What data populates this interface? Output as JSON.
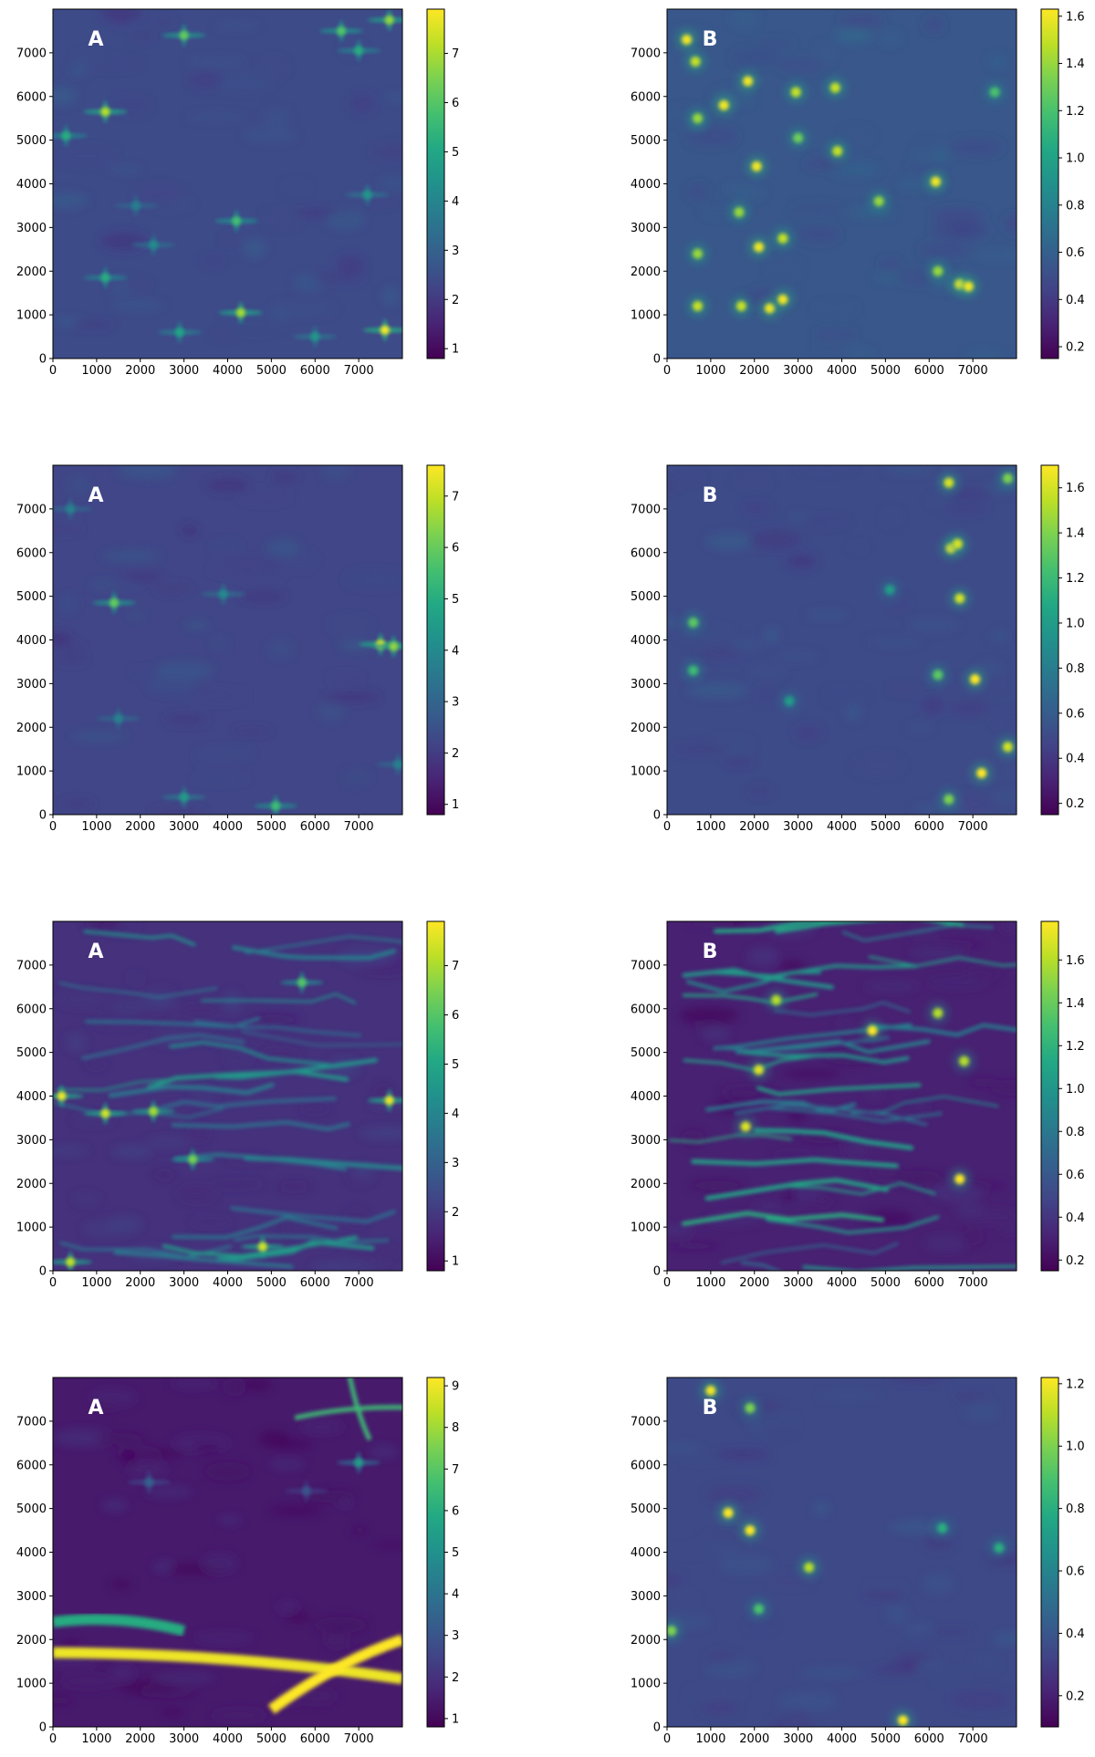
{
  "figure": {
    "panel_labels": [
      "A",
      "B"
    ]
  },
  "chart_data": [
    {
      "type": "heatmap",
      "panel_label": "A",
      "row": 1,
      "column": 1,
      "x_ticks": [
        "0",
        "1000",
        "2000",
        "3000",
        "4000",
        "5000",
        "6000",
        "7000"
      ],
      "y_ticks": [
        "0",
        "1000",
        "2000",
        "3000",
        "4000",
        "5000",
        "6000",
        "7000"
      ],
      "xlim": [
        0,
        8000
      ],
      "ylim": [
        0,
        8000
      ],
      "colorbar_ticks": [
        "1",
        "2",
        "3",
        "4",
        "5",
        "6",
        "7"
      ],
      "value_range": [
        0.8,
        7.9
      ],
      "background_value": 2.4,
      "grid": false,
      "features": [
        {
          "kind": "star",
          "x": 1200,
          "y": 5650,
          "value": 7.2
        },
        {
          "kind": "star",
          "x": 3000,
          "y": 7400,
          "value": 6.2
        },
        {
          "kind": "star",
          "x": 4300,
          "y": 1050,
          "value": 7.0
        },
        {
          "kind": "star",
          "x": 7600,
          "y": 650,
          "value": 7.9
        },
        {
          "kind": "star",
          "x": 4200,
          "y": 3150,
          "value": 5.8
        },
        {
          "kind": "star",
          "x": 1200,
          "y": 1850,
          "value": 5.2
        },
        {
          "kind": "star",
          "x": 6600,
          "y": 7500,
          "value": 6.0
        },
        {
          "kind": "star",
          "x": 7000,
          "y": 7050,
          "value": 5.2
        },
        {
          "kind": "star",
          "x": 2900,
          "y": 600,
          "value": 5.0
        },
        {
          "kind": "star",
          "x": 7700,
          "y": 7750,
          "value": 6.8
        },
        {
          "kind": "star",
          "x": 300,
          "y": 5100,
          "value": 5.2
        },
        {
          "kind": "star",
          "x": 7200,
          "y": 3750,
          "value": 4.5
        },
        {
          "kind": "star",
          "x": 2300,
          "y": 2600,
          "value": 4.2
        },
        {
          "kind": "star",
          "x": 1900,
          "y": 3500,
          "value": 3.8
        },
        {
          "kind": "star",
          "x": 6000,
          "y": 500,
          "value": 4.5
        }
      ]
    },
    {
      "type": "heatmap",
      "panel_label": "B",
      "row": 1,
      "column": 2,
      "x_ticks": [
        "0",
        "1000",
        "2000",
        "3000",
        "4000",
        "5000",
        "6000",
        "7000"
      ],
      "y_ticks": [
        "0",
        "1000",
        "2000",
        "3000",
        "4000",
        "5000",
        "6000",
        "7000"
      ],
      "xlim": [
        0,
        8000
      ],
      "ylim": [
        0,
        8000
      ],
      "colorbar_ticks": [
        "0.2",
        "0.4",
        "0.6",
        "0.8",
        "1.0",
        "1.2",
        "1.4",
        "1.6"
      ],
      "value_range": [
        0.15,
        1.63
      ],
      "background_value": 0.55,
      "grid": false,
      "features": [
        {
          "kind": "blob",
          "x": 450,
          "y": 7300,
          "value": 1.6
        },
        {
          "kind": "blob",
          "x": 650,
          "y": 6800,
          "value": 1.5
        },
        {
          "kind": "blob",
          "x": 700,
          "y": 5500,
          "value": 1.4
        },
        {
          "kind": "blob",
          "x": 1300,
          "y": 5800,
          "value": 1.6
        },
        {
          "kind": "blob",
          "x": 1850,
          "y": 6350,
          "value": 1.6
        },
        {
          "kind": "blob",
          "x": 2950,
          "y": 6100,
          "value": 1.5
        },
        {
          "kind": "blob",
          "x": 3850,
          "y": 6200,
          "value": 1.5
        },
        {
          "kind": "blob",
          "x": 3900,
          "y": 4750,
          "value": 1.5
        },
        {
          "kind": "blob",
          "x": 2050,
          "y": 4400,
          "value": 1.6
        },
        {
          "kind": "blob",
          "x": 6150,
          "y": 4050,
          "value": 1.6
        },
        {
          "kind": "blob",
          "x": 2100,
          "y": 2550,
          "value": 1.6
        },
        {
          "kind": "blob",
          "x": 2650,
          "y": 2750,
          "value": 1.5
        },
        {
          "kind": "blob",
          "x": 700,
          "y": 2400,
          "value": 1.4
        },
        {
          "kind": "blob",
          "x": 700,
          "y": 1200,
          "value": 1.5
        },
        {
          "kind": "blob",
          "x": 1700,
          "y": 1200,
          "value": 1.5
        },
        {
          "kind": "blob",
          "x": 2350,
          "y": 1150,
          "value": 1.6
        },
        {
          "kind": "blob",
          "x": 2650,
          "y": 1350,
          "value": 1.6
        },
        {
          "kind": "blob",
          "x": 6700,
          "y": 1700,
          "value": 1.6
        },
        {
          "kind": "blob",
          "x": 6900,
          "y": 1650,
          "value": 1.6
        },
        {
          "kind": "blob",
          "x": 6200,
          "y": 2000,
          "value": 1.4
        },
        {
          "kind": "blob",
          "x": 4850,
          "y": 3600,
          "value": 1.4
        },
        {
          "kind": "blob",
          "x": 1650,
          "y": 3350,
          "value": 1.4
        },
        {
          "kind": "blob",
          "x": 3000,
          "y": 5050,
          "value": 1.3
        },
        {
          "kind": "blob",
          "x": 7500,
          "y": 6100,
          "value": 1.2
        }
      ]
    },
    {
      "type": "heatmap",
      "panel_label": "A",
      "row": 2,
      "column": 1,
      "x_ticks": [
        "0",
        "1000",
        "2000",
        "3000",
        "4000",
        "5000",
        "6000",
        "7000"
      ],
      "y_ticks": [
        "0",
        "1000",
        "2000",
        "3000",
        "4000",
        "5000",
        "6000",
        "7000"
      ],
      "xlim": [
        0,
        8000
      ],
      "ylim": [
        0,
        8000
      ],
      "colorbar_ticks": [
        "1",
        "2",
        "3",
        "4",
        "5",
        "6",
        "7"
      ],
      "value_range": [
        0.8,
        7.6
      ],
      "background_value": 2.2,
      "grid": false,
      "features": [
        {
          "kind": "star",
          "x": 7500,
          "y": 3900,
          "value": 7.3
        },
        {
          "kind": "star",
          "x": 7800,
          "y": 3850,
          "value": 6.5
        },
        {
          "kind": "star",
          "x": 1400,
          "y": 4850,
          "value": 6.0
        },
        {
          "kind": "star",
          "x": 5100,
          "y": 200,
          "value": 5.5
        },
        {
          "kind": "star",
          "x": 3000,
          "y": 400,
          "value": 4.5
        },
        {
          "kind": "star",
          "x": 3900,
          "y": 5050,
          "value": 4.0
        },
        {
          "kind": "star",
          "x": 1500,
          "y": 2200,
          "value": 3.8
        },
        {
          "kind": "star",
          "x": 400,
          "y": 7000,
          "value": 3.8
        },
        {
          "kind": "star",
          "x": 7900,
          "y": 1150,
          "value": 3.8
        }
      ]
    },
    {
      "type": "heatmap",
      "panel_label": "B",
      "row": 2,
      "column": 2,
      "x_ticks": [
        "0",
        "1000",
        "2000",
        "3000",
        "4000",
        "5000",
        "6000",
        "7000"
      ],
      "y_ticks": [
        "0",
        "1000",
        "2000",
        "3000",
        "4000",
        "5000",
        "6000",
        "7000"
      ],
      "xlim": [
        0,
        8000
      ],
      "ylim": [
        0,
        8000
      ],
      "colorbar_ticks": [
        "0.2",
        "0.4",
        "0.6",
        "0.8",
        "1.0",
        "1.2",
        "1.4",
        "1.6"
      ],
      "value_range": [
        0.15,
        1.7
      ],
      "background_value": 0.5,
      "grid": false,
      "features": [
        {
          "kind": "blob",
          "x": 6450,
          "y": 7600,
          "value": 1.6
        },
        {
          "kind": "blob",
          "x": 6500,
          "y": 6100,
          "value": 1.7
        },
        {
          "kind": "blob",
          "x": 6650,
          "y": 6200,
          "value": 1.6
        },
        {
          "kind": "blob",
          "x": 6700,
          "y": 4950,
          "value": 1.6
        },
        {
          "kind": "blob",
          "x": 7050,
          "y": 3100,
          "value": 1.7
        },
        {
          "kind": "blob",
          "x": 7200,
          "y": 950,
          "value": 1.7
        },
        {
          "kind": "blob",
          "x": 7800,
          "y": 1550,
          "value": 1.6
        },
        {
          "kind": "blob",
          "x": 7800,
          "y": 7700,
          "value": 1.4
        },
        {
          "kind": "blob",
          "x": 600,
          "y": 4400,
          "value": 1.3
        },
        {
          "kind": "blob",
          "x": 600,
          "y": 3300,
          "value": 1.2
        },
        {
          "kind": "blob",
          "x": 6450,
          "y": 350,
          "value": 1.4
        },
        {
          "kind": "blob",
          "x": 6200,
          "y": 3200,
          "value": 1.3
        },
        {
          "kind": "blob",
          "x": 2800,
          "y": 2600,
          "value": 1.0
        },
        {
          "kind": "blob",
          "x": 5100,
          "y": 5150,
          "value": 1.0
        }
      ]
    },
    {
      "type": "heatmap",
      "panel_label": "A",
      "row": 3,
      "column": 1,
      "x_ticks": [
        "0",
        "1000",
        "2000",
        "3000",
        "4000",
        "5000",
        "6000",
        "7000"
      ],
      "y_ticks": [
        "0",
        "1000",
        "2000",
        "3000",
        "4000",
        "5000",
        "6000",
        "7000"
      ],
      "xlim": [
        0,
        8000
      ],
      "ylim": [
        0,
        8000
      ],
      "colorbar_ticks": [
        "1",
        "2",
        "3",
        "4",
        "5",
        "6",
        "7"
      ],
      "value_range": [
        0.8,
        7.9
      ],
      "background_value": 1.8,
      "grid": false,
      "features": [
        {
          "kind": "filaments",
          "count": 26,
          "value": 4.5
        },
        {
          "kind": "star",
          "x": 200,
          "y": 4000,
          "value": 7.8
        },
        {
          "kind": "star",
          "x": 1200,
          "y": 3600,
          "value": 7.5
        },
        {
          "kind": "star",
          "x": 2300,
          "y": 3650,
          "value": 7.0
        },
        {
          "kind": "star",
          "x": 7700,
          "y": 3900,
          "value": 7.8
        },
        {
          "kind": "star",
          "x": 4800,
          "y": 550,
          "value": 7.5
        },
        {
          "kind": "star",
          "x": 400,
          "y": 200,
          "value": 7.3
        },
        {
          "kind": "star",
          "x": 3200,
          "y": 2550,
          "value": 6.5
        },
        {
          "kind": "star",
          "x": 5700,
          "y": 6600,
          "value": 6.0
        }
      ]
    },
    {
      "type": "heatmap",
      "panel_label": "B",
      "row": 3,
      "column": 2,
      "x_ticks": [
        "0",
        "1000",
        "2000",
        "3000",
        "4000",
        "5000",
        "6000",
        "7000"
      ],
      "y_ticks": [
        "0",
        "1000",
        "2000",
        "3000",
        "4000",
        "5000",
        "6000",
        "7000"
      ],
      "xlim": [
        0,
        8000
      ],
      "ylim": [
        0,
        8000
      ],
      "colorbar_ticks": [
        "0.2",
        "0.4",
        "0.6",
        "0.8",
        "1.0",
        "1.2",
        "1.4",
        "1.6"
      ],
      "value_range": [
        0.15,
        1.78
      ],
      "background_value": 0.3,
      "grid": false,
      "features": [
        {
          "kind": "filaments",
          "count": 30,
          "value": 1.1
        },
        {
          "kind": "blob",
          "x": 4700,
          "y": 5500,
          "value": 1.78
        },
        {
          "kind": "blob",
          "x": 6700,
          "y": 2100,
          "value": 1.78
        },
        {
          "kind": "blob",
          "x": 2100,
          "y": 4600,
          "value": 1.7
        },
        {
          "kind": "blob",
          "x": 1800,
          "y": 3300,
          "value": 1.7
        },
        {
          "kind": "blob",
          "x": 6800,
          "y": 4800,
          "value": 1.6
        },
        {
          "kind": "blob",
          "x": 2500,
          "y": 6200,
          "value": 1.6
        },
        {
          "kind": "blob",
          "x": 6200,
          "y": 5900,
          "value": 1.6
        }
      ]
    },
    {
      "type": "heatmap",
      "panel_label": "A",
      "row": 4,
      "column": 1,
      "x_ticks": [
        "0",
        "1000",
        "2000",
        "3000",
        "4000",
        "5000",
        "6000",
        "7000"
      ],
      "y_ticks": [
        "0",
        "1000",
        "2000",
        "3000",
        "4000",
        "5000",
        "6000",
        "7000"
      ],
      "xlim": [
        0,
        8000
      ],
      "ylim": [
        0,
        8000
      ],
      "colorbar_ticks": [
        "1",
        "2",
        "3",
        "4",
        "5",
        "6",
        "7",
        "8",
        "9"
      ],
      "value_range": [
        0.8,
        9.2
      ],
      "background_value": 1.4,
      "grid": false,
      "features": [
        {
          "kind": "caustic_band",
          "from": [
            0,
            1700
          ],
          "to": [
            8000,
            1100
          ],
          "value": 9.0
        },
        {
          "kind": "caustic_band",
          "from": [
            5000,
            400
          ],
          "to": [
            8000,
            2000
          ],
          "value": 9.2
        },
        {
          "kind": "caustic_band",
          "from": [
            0,
            2400
          ],
          "to": [
            3000,
            2200
          ],
          "value": 6.0
        },
        {
          "kind": "caustic_arc",
          "x": 7000,
          "y": 7200,
          "value": 6.5
        },
        {
          "kind": "star",
          "x": 7000,
          "y": 6050,
          "value": 5.5
        },
        {
          "kind": "star",
          "x": 2200,
          "y": 5600,
          "value": 3.5
        },
        {
          "kind": "star",
          "x": 5800,
          "y": 5400,
          "value": 3.0
        }
      ]
    },
    {
      "type": "heatmap",
      "panel_label": "B",
      "row": 4,
      "column": 2,
      "x_ticks": [
        "0",
        "1000",
        "2000",
        "3000",
        "4000",
        "5000",
        "6000",
        "7000"
      ],
      "y_ticks": [
        "0",
        "1000",
        "2000",
        "3000",
        "4000",
        "5000",
        "6000",
        "7000"
      ],
      "xlim": [
        0,
        8000
      ],
      "ylim": [
        0,
        8000
      ],
      "colorbar_ticks": [
        "0.2",
        "0.4",
        "0.6",
        "0.8",
        "1.0",
        "1.2"
      ],
      "value_range": [
        0.1,
        1.22
      ],
      "background_value": 0.35,
      "grid": false,
      "features": [
        {
          "kind": "blob",
          "x": 1400,
          "y": 4900,
          "value": 1.22
        },
        {
          "kind": "blob",
          "x": 1900,
          "y": 4500,
          "value": 1.22
        },
        {
          "kind": "blob",
          "x": 1000,
          "y": 7700,
          "value": 1.2
        },
        {
          "kind": "blob",
          "x": 5400,
          "y": 150,
          "value": 1.22
        },
        {
          "kind": "blob",
          "x": 3250,
          "y": 3650,
          "value": 1.1
        },
        {
          "kind": "blob",
          "x": 1900,
          "y": 7300,
          "value": 1.0
        },
        {
          "kind": "blob",
          "x": 100,
          "y": 2200,
          "value": 1.0
        },
        {
          "kind": "blob",
          "x": 2100,
          "y": 2700,
          "value": 0.9
        },
        {
          "kind": "blob",
          "x": 7600,
          "y": 4100,
          "value": 0.8
        },
        {
          "kind": "blob",
          "x": 6300,
          "y": 4550,
          "value": 0.8
        }
      ]
    }
  ]
}
